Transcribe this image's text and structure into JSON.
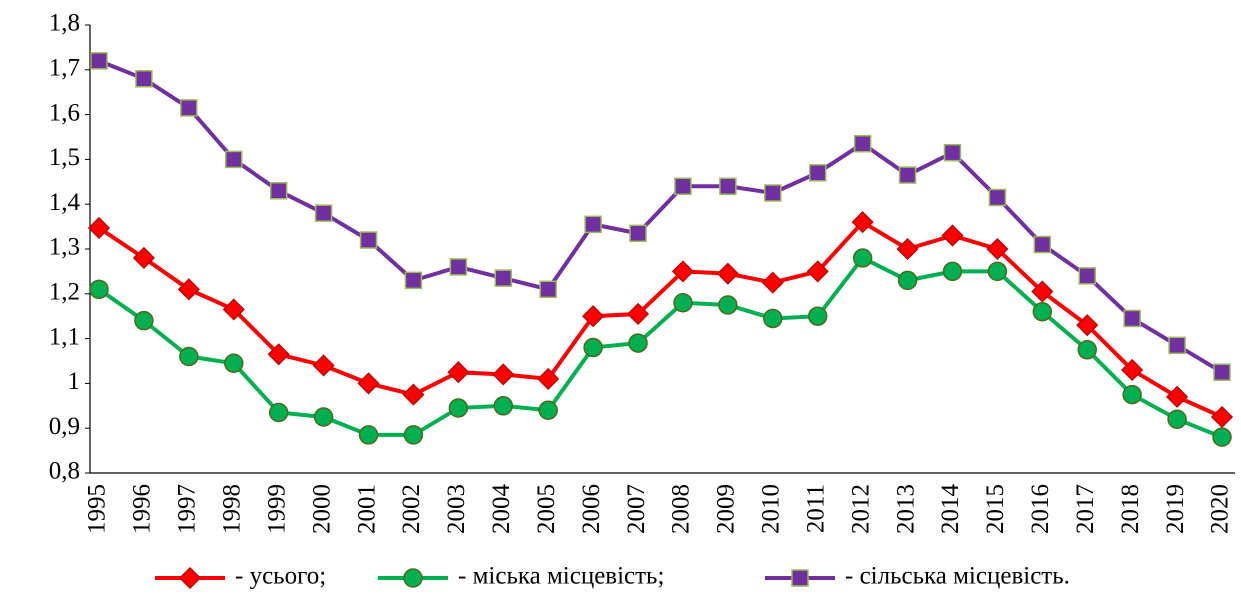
{
  "chart_data": {
    "type": "line",
    "categories": [
      "1995",
      "1996",
      "1997",
      "1998",
      "1999",
      "2000",
      "2001",
      "2002",
      "2003",
      "2004",
      "2005",
      "2006",
      "2007",
      "2008",
      "2009",
      "2010",
      "2011",
      "2012",
      "2013",
      "2014",
      "2015",
      "2016",
      "2017",
      "2018",
      "2019",
      "2020"
    ],
    "series": [
      {
        "name": "- усього;",
        "color": "#ff0000",
        "marker": "diamond",
        "marker_edge": "#c00000",
        "values": [
          1.347,
          1.28,
          1.21,
          1.165,
          1.065,
          1.04,
          1.0,
          0.975,
          1.025,
          1.02,
          1.01,
          1.15,
          1.155,
          1.25,
          1.245,
          1.225,
          1.25,
          1.36,
          1.3,
          1.33,
          1.3,
          1.205,
          1.13,
          1.03,
          0.97,
          0.925
        ]
      },
      {
        "name": "- міська місцевість;",
        "color": "#00b050",
        "marker": "circle",
        "marker_edge": "#4d6b1f",
        "values": [
          1.21,
          1.14,
          1.06,
          1.045,
          0.935,
          0.925,
          0.885,
          0.885,
          0.945,
          0.95,
          0.94,
          1.08,
          1.09,
          1.18,
          1.175,
          1.145,
          1.15,
          1.28,
          1.23,
          1.25,
          1.25,
          1.16,
          1.075,
          0.975,
          0.92,
          0.88
        ]
      },
      {
        "name": "- сільська місцевість.",
        "color": "#7030a0",
        "marker": "square",
        "marker_edge": "#9bbb59",
        "values": [
          1.72,
          1.68,
          1.615,
          1.5,
          1.43,
          1.38,
          1.32,
          1.23,
          1.26,
          1.235,
          1.21,
          1.355,
          1.335,
          1.44,
          1.44,
          1.425,
          1.47,
          1.535,
          1.465,
          1.515,
          1.415,
          1.31,
          1.24,
          1.145,
          1.085,
          1.025
        ]
      }
    ],
    "ylim": [
      0.8,
      1.8
    ],
    "yticks": [
      {
        "value": 0.8,
        "label": "0,8"
      },
      {
        "value": 0.9,
        "label": "0,9"
      },
      1,
      {
        "value": 1.1,
        "label": "1,1"
      },
      {
        "value": 1.2,
        "label": "1,2"
      },
      {
        "value": 1.3,
        "label": "1,3"
      },
      {
        "value": 1.4,
        "label": "1,4"
      },
      {
        "value": 1.5,
        "label": "1,5"
      },
      {
        "value": 1.6,
        "label": "1,6"
      },
      {
        "value": 1.7,
        "label": "1,7"
      },
      {
        "value": 1.8,
        "label": "1,8"
      }
    ],
    "grid": false,
    "legend": "bottom"
  }
}
